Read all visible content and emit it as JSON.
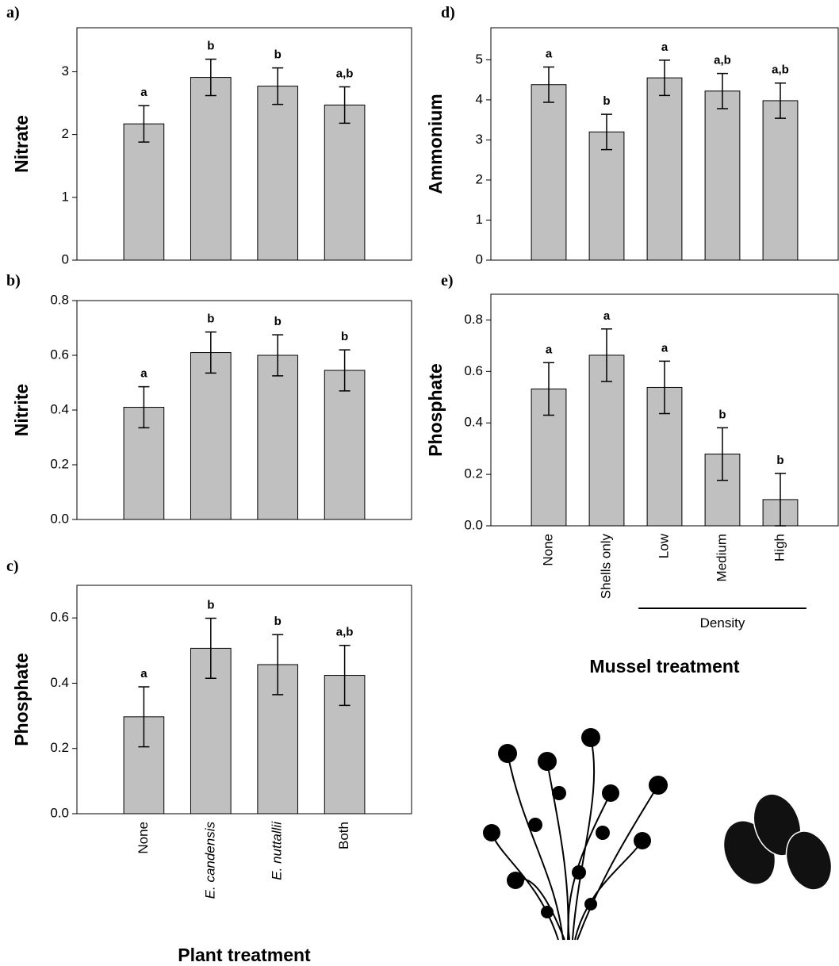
{
  "chart_data": [
    {
      "type": "bar",
      "panel": "a)",
      "y_label": "Nitrate",
      "categories": [
        null,
        null,
        null,
        null
      ],
      "values": [
        2.17,
        2.91,
        2.77,
        2.47
      ],
      "errors": [
        0.29,
        0.29,
        0.29,
        0.29
      ],
      "annotations": [
        "a",
        "b",
        "b",
        "a,b"
      ],
      "color": "#c0c0c0",
      "ylim": [
        0,
        3.7
      ],
      "yticks": [
        0,
        1,
        2,
        3
      ]
    },
    {
      "type": "bar",
      "panel": "b)",
      "y_label": "Nitrite",
      "categories": [
        null,
        null,
        null,
        null
      ],
      "values": [
        0.41,
        0.61,
        0.6,
        0.545
      ],
      "errors": [
        0.075,
        0.075,
        0.075,
        0.075
      ],
      "annotations": [
        "a",
        "b",
        "b",
        "b"
      ],
      "color": "#c0c0c0",
      "ylim": [
        0,
        0.8
      ],
      "yticks": [
        {
          "value": 0,
          "label": "0.0"
        },
        0.2,
        0.4,
        0.6,
        0.8
      ]
    },
    {
      "type": "bar",
      "panel": "c)",
      "y_label": "Phosphate",
      "x_label": "Plant treatment",
      "categories": [
        "None",
        "E. candensis",
        "E. nuttallii",
        "Both"
      ],
      "italic_categories": [
        false,
        true,
        true,
        false
      ],
      "values": [
        0.297,
        0.507,
        0.457,
        0.424
      ],
      "errors": [
        0.092,
        0.092,
        0.092,
        0.092
      ],
      "annotations": [
        "a",
        "b",
        "b",
        "a,b"
      ],
      "color": "#c0c0c0",
      "ylim": [
        0,
        0.7
      ],
      "yticks": [
        {
          "value": 0,
          "label": "0.0"
        },
        0.2,
        0.4,
        0.6
      ]
    },
    {
      "type": "bar",
      "panel": "d)",
      "y_label": "Ammonium",
      "categories": [
        null,
        null,
        null,
        null,
        null
      ],
      "values": [
        4.38,
        3.2,
        4.55,
        4.22,
        3.98
      ],
      "errors": [
        0.44,
        0.44,
        0.44,
        0.44,
        0.44
      ],
      "annotations": [
        "a",
        "b",
        "a",
        "a,b",
        "a,b"
      ],
      "color": "#c0c0c0",
      "ylim": [
        0,
        5.8
      ],
      "yticks": [
        0,
        1,
        2,
        3,
        4,
        5
      ]
    },
    {
      "type": "bar",
      "panel": "e)",
      "y_label": "Phosphate",
      "x_label": "Mussel treatment",
      "group_label": "Density",
      "categories": [
        "None",
        "Shells only",
        "Low",
        "Medium",
        "High"
      ],
      "italic_categories": [
        false,
        false,
        false,
        false,
        false
      ],
      "values": [
        0.532,
        0.663,
        0.538,
        0.279,
        0.102
      ],
      "errors": [
        0.102,
        0.102,
        0.102,
        0.102,
        0.102
      ],
      "annotations": [
        "a",
        "a",
        "a",
        "b",
        "b"
      ],
      "color": "#c0c0c0",
      "ylim": [
        0,
        0.9
      ],
      "yticks": [
        {
          "value": 0,
          "label": "0.0"
        },
        0.2,
        0.4,
        0.6,
        0.8
      ]
    }
  ]
}
